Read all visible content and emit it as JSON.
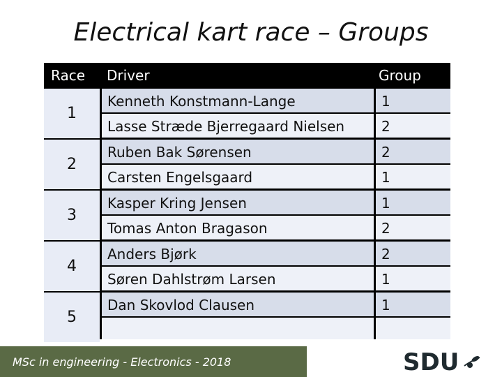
{
  "title": "Electrical kart race – Groups",
  "headers": {
    "race": "Race",
    "driver": "Driver",
    "group": "Group"
  },
  "races": [
    "1",
    "2",
    "3",
    "4",
    "5"
  ],
  "rows": [
    {
      "driver": "Kenneth Konstmann-Lange",
      "group": "1"
    },
    {
      "driver": "Lasse Stræde Bjerregaard Nielsen",
      "group": "2"
    },
    {
      "driver": "Ruben Bak Sørensen",
      "group": "2"
    },
    {
      "driver": "Carsten Engelsgaard",
      "group": "1"
    },
    {
      "driver": "Kasper Kring Jensen",
      "group": "1"
    },
    {
      "driver": "Tomas Anton Bragason",
      "group": "2"
    },
    {
      "driver": "Anders Bjørk",
      "group": "2"
    },
    {
      "driver": "Søren Dahlstrøm Larsen",
      "group": "1"
    },
    {
      "driver": "Dan Skovlod Clausen",
      "group": "1"
    },
    {
      "driver": "",
      "group": ""
    }
  ],
  "footer": {
    "text": "MSc in engineering - Electronics - 2018"
  },
  "logo": {
    "text": "SDU",
    "icon": "olive-branch-icon"
  },
  "colors": {
    "header_bg": "#000000",
    "row_light": "#eef1f8",
    "row_dark": "#d7ddea",
    "footer_bg": "#5a6a45"
  }
}
